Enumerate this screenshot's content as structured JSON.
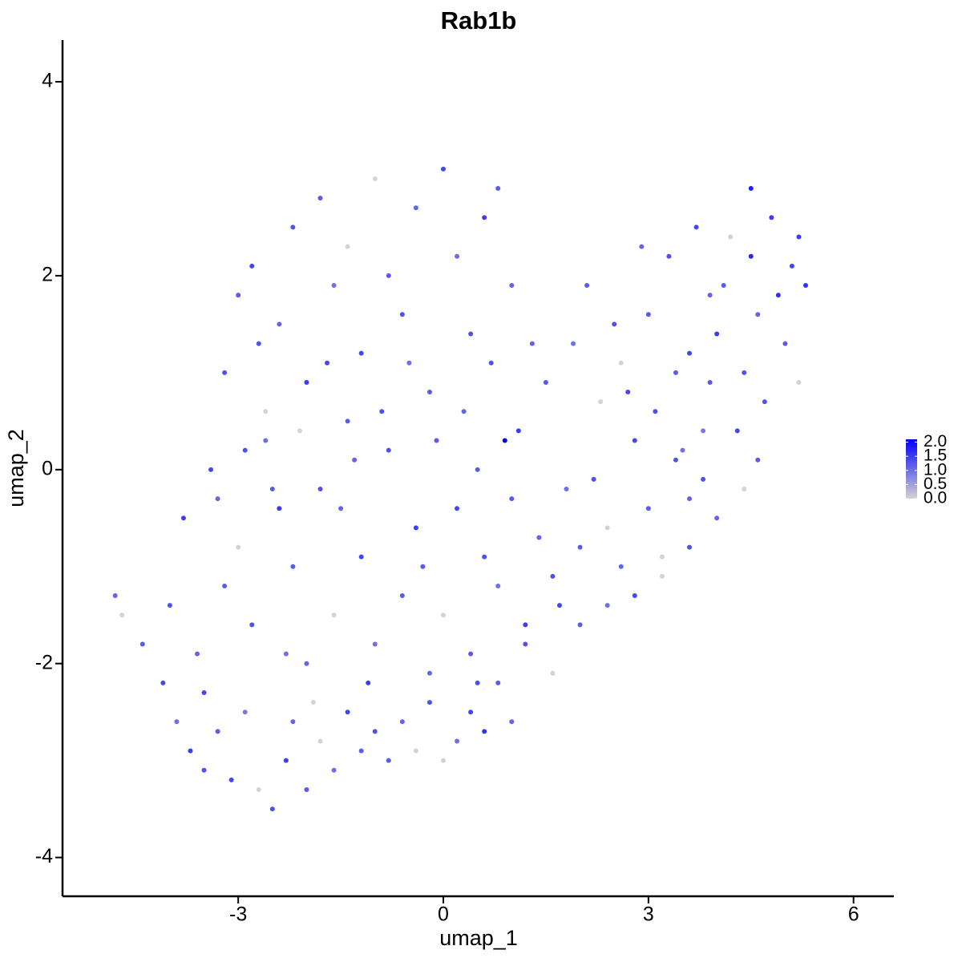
{
  "chart_data": {
    "type": "scatter",
    "title": "Rab1b",
    "x_label": "umap_1",
    "y_label": "umap_2",
    "xlim": [
      -5.57,
      6.59
    ],
    "ylim": [
      -4.4,
      4.43
    ],
    "xticks": [
      -3,
      0,
      3,
      6
    ],
    "yticks": [
      -4,
      -2,
      0,
      2,
      4
    ],
    "low_color": "#d3d3d3",
    "high_color": "#0000ff",
    "clim": [
      0,
      2.1
    ],
    "cticks": [
      {
        "value": 0,
        "label": "0.0"
      },
      {
        "value": 0.5,
        "label": "0.5"
      },
      {
        "value": 1,
        "label": "1.0"
      },
      {
        "value": 1.5,
        "label": "1.5"
      },
      {
        "value": 2,
        "label": "2.0"
      }
    ],
    "x": [
      -4.8,
      -4.7,
      -4.4,
      -4.1,
      -3.9,
      -3.7,
      -3.5,
      -3.3,
      -3.1,
      -2.9,
      -2.7,
      -2.5,
      -2.3,
      -2.2,
      -2.0,
      -1.8,
      -1.6,
      -1.4,
      -1.2,
      -1.0,
      -0.8,
      -0.6,
      -0.4,
      -0.2,
      0.0,
      0.2,
      0.4,
      0.6,
      0.8,
      1.0,
      1.2,
      1.6,
      2.0,
      2.4,
      2.8,
      3.2,
      3.6,
      4.0,
      4.4,
      4.6,
      -4.0,
      -3.8,
      -3.6,
      -3.4,
      -3.2,
      -3.0,
      -2.8,
      -2.6,
      -2.4,
      -2.2,
      -2.0,
      -1.8,
      -1.6,
      -1.4,
      -1.2,
      -1.0,
      -0.8,
      -0.6,
      -0.4,
      -0.2,
      0.0,
      0.2,
      0.4,
      0.6,
      0.8,
      1.0,
      1.2,
      1.4,
      1.6,
      1.8,
      2.0,
      2.2,
      2.4,
      2.6,
      2.8,
      3.0,
      3.2,
      3.4,
      3.6,
      3.8,
      -3.2,
      -3.0,
      -2.8,
      -2.6,
      -2.4,
      -2.2,
      -2.0,
      -1.8,
      -1.6,
      -1.4,
      -1.2,
      -1.0,
      -0.8,
      -0.6,
      -0.4,
      -0.2,
      0.0,
      0.2,
      0.4,
      0.6,
      0.8,
      1.0,
      -2.9,
      -2.5,
      -2.1,
      -1.7,
      -1.3,
      -0.9,
      -0.5,
      -0.1,
      0.3,
      0.7,
      1.1,
      1.5,
      1.9,
      2.3,
      2.7,
      0.5,
      0.9,
      1.3,
      3.0,
      3.3,
      3.6,
      3.9,
      4.2,
      4.5,
      4.8,
      5.1,
      5.3,
      4.4,
      3.1,
      3.5,
      3.9,
      4.3,
      4.7,
      5.0,
      5.2,
      4.6,
      4.0,
      3.4,
      2.1,
      2.5,
      2.9,
      3.7,
      4.1,
      4.9,
      5.2,
      4.5,
      2.6,
      3.8,
      -3.5,
      -3.3,
      -2.7,
      -1.9,
      -1.1,
      -0.3,
      0.5,
      -1.5,
      -2.3,
      1.7
    ],
    "values": [
      -1.3,
      -1.5,
      -1.8,
      -2.2,
      -2.6,
      -2.9,
      -3.1,
      -2.7,
      -3.2,
      -2.5,
      -3.3,
      -3.5,
      -3.0,
      -2.6,
      -3.3,
      -2.8,
      -3.1,
      -2.5,
      -2.9,
      -2.7,
      -3.0,
      -2.6,
      -2.9,
      -2.4,
      -3.0,
      -2.8,
      -2.5,
      -2.7,
      -2.2,
      -2.6,
      -1.8,
      -2.1,
      -1.6,
      -1.4,
      -1.3,
      -1.1,
      -0.8,
      -0.5,
      -0.2,
      0.1,
      -1.4,
      -0.5,
      -1.9,
      0.0,
      -1.2,
      -0.8,
      -1.6,
      0.3,
      -0.4,
      -1.0,
      -2.0,
      -0.2,
      -1.5,
      0.5,
      -0.9,
      -1.8,
      0.2,
      -1.3,
      -0.6,
      -2.1,
      -1.5,
      -0.4,
      -1.9,
      -0.9,
      -1.2,
      -0.3,
      -1.6,
      -0.7,
      -1.1,
      -0.2,
      -0.8,
      -0.1,
      -0.6,
      -1.0,
      0.3,
      -0.4,
      -0.9,
      0.1,
      -0.3,
      0.4,
      1.0,
      1.8,
      2.1,
      0.6,
      1.5,
      2.5,
      0.9,
      2.8,
      1.9,
      2.3,
      1.2,
      3.0,
      2.0,
      1.6,
      2.7,
      0.8,
      3.1,
      2.2,
      1.4,
      2.6,
      2.9,
      1.9,
      0.2,
      -0.2,
      0.4,
      1.1,
      0.1,
      0.6,
      1.1,
      0.3,
      0.6,
      1.1,
      0.4,
      0.9,
      1.3,
      0.7,
      0.8,
      0.0,
      0.3,
      1.3,
      1.6,
      2.2,
      1.2,
      1.8,
      2.4,
      2.9,
      2.6,
      2.1,
      1.9,
      1.0,
      0.6,
      0.2,
      0.9,
      0.4,
      0.7,
      1.3,
      0.9,
      1.6,
      1.4,
      1.0,
      1.9,
      1.5,
      2.3,
      2.5,
      1.9,
      1.8,
      2.4,
      2.2,
      1.1,
      -0.1,
      -2.3,
      -0.3,
      1.3,
      -2.4,
      -2.2,
      -1.0,
      -2.2,
      -0.4,
      -1.9,
      -1.4
    ],
    "expression": [
      1.1,
      0,
      1.2,
      1.4,
      1.0,
      1.5,
      1.3,
      1.2,
      1.4,
      0.9,
      0,
      1.3,
      1.5,
      1.1,
      1.2,
      0,
      1.0,
      1.4,
      1.2,
      1.3,
      1.2,
      1.1,
      0,
      1.3,
      0,
      1.0,
      1.4,
      1.6,
      1.2,
      1.1,
      1.3,
      0,
      1.2,
      1.0,
      1.4,
      0,
      1.3,
      1.1,
      0,
      1.2,
      1.3,
      1.5,
      1.1,
      1.4,
      1.2,
      0,
      1.3,
      1.0,
      1.5,
      1.2,
      1.1,
      1.3,
      0,
      1.2,
      1.4,
      1.0,
      1.3,
      1.2,
      1.5,
      1.1,
      0,
      1.4,
      1.2,
      1.3,
      1.0,
      1.2,
      1.5,
      1.1,
      1.3,
      1.0,
      1.2,
      1.3,
      0,
      1.1,
      1.4,
      1.2,
      0,
      1.3,
      1.1,
      0.9,
      1.3,
      1.2,
      1.4,
      0,
      1.1,
      1.3,
      1.5,
      1.2,
      1.0,
      0,
      1.4,
      0,
      1.2,
      1.3,
      1.1,
      1.2,
      1.4,
      1.0,
      1.3,
      1.5,
      1.2,
      1.1,
      1.3,
      1.2,
      0,
      1.4,
      1.1,
      1.3,
      1.0,
      1.2,
      1.1,
      1.3,
      1.5,
      1.2,
      1.0,
      0,
      1.4,
      1.2,
      2.1,
      1.1,
      1.2,
      1.3,
      1.4,
      1.1,
      0,
      1.8,
      1.5,
      1.4,
      1.6,
      1.3,
      1.3,
      1.0,
      1.2,
      1.4,
      1.3,
      1.2,
      0,
      1.1,
      1.5,
      1.2,
      1.2,
      1.3,
      1.1,
      1.4,
      1.2,
      1.6,
      1.5,
      1.7,
      0,
      1.3,
      1.4,
      1.1,
      1.3,
      0,
      1.5,
      1.2,
      1.3,
      1.1,
      1.0,
      1.4
    ]
  }
}
